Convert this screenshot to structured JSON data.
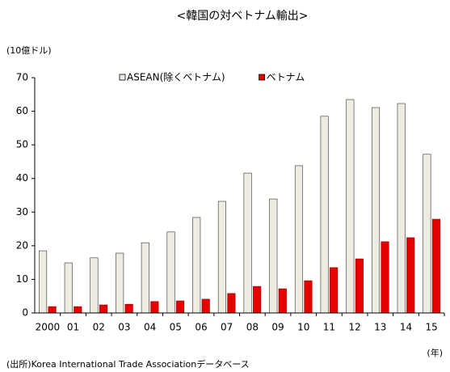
{
  "chart_data": {
    "type": "bar",
    "title": "<韓国の対ベトナム輸出>",
    "y_label": "(10億ドル)",
    "x_label": "(年)",
    "source": "(出所)Korea International Trade Associationデータベース",
    "categories": [
      "2000",
      "01",
      "02",
      "03",
      "04",
      "05",
      "06",
      "07",
      "08",
      "09",
      "10",
      "11",
      "12",
      "13",
      "14",
      "15"
    ],
    "series": [
      {
        "name": "ASEAN(除くベトナム)",
        "color": "#eeece1",
        "values": [
          18.5,
          14.9,
          16.4,
          17.8,
          20.9,
          24.1,
          28.4,
          33.2,
          41.6,
          33.9,
          43.8,
          58.5,
          63.5,
          61.1,
          62.3,
          47.2
        ]
      },
      {
        "name": "ベトナム",
        "color": "#e60000",
        "values": [
          1.9,
          1.9,
          2.4,
          2.6,
          3.4,
          3.6,
          4.1,
          5.8,
          7.9,
          7.2,
          9.6,
          13.5,
          16.1,
          21.2,
          22.4,
          27.9
        ]
      }
    ],
    "ylim": [
      0,
      70
    ],
    "yticks": [
      0,
      10,
      20,
      30,
      40,
      50,
      60,
      70
    ],
    "grid": false
  }
}
